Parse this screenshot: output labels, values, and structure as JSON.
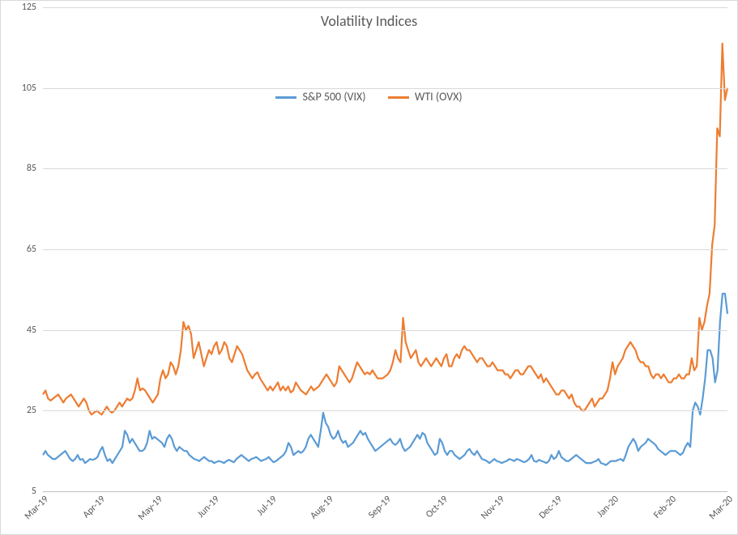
{
  "chart": {
    "type": "line",
    "title": "Volatility Indices",
    "title_fontsize": 18,
    "title_color": "#595959",
    "background_color": "#ffffff",
    "border_color": "#d9d9d9",
    "grid_color": "#d9d9d9",
    "axis_line_color": "#bfbfbf",
    "tick_label_color": "#595959",
    "tick_label_fontsize": 12,
    "legend_fontsize": 14,
    "line_width": 2.2,
    "ylim": [
      5,
      125
    ],
    "ytick_step": 20,
    "yticks": [
      5,
      25,
      45,
      65,
      85,
      105,
      125
    ],
    "x_categories": [
      "Mar-19",
      "Apr-19",
      "May-19",
      "Jun-19",
      "Jul-19",
      "Aug-19",
      "Sep-19",
      "Oct-19",
      "Nov-19",
      "Dec-19",
      "Jan-20",
      "Feb-20",
      "Mar-20"
    ],
    "series": [
      {
        "name": "S&P 500 (VIX)",
        "color": "#5b9bd5",
        "values": [
          14,
          15,
          14,
          13.5,
          13,
          13,
          13.5,
          14,
          14.5,
          15,
          14,
          13,
          12.5,
          13,
          14,
          12.8,
          13,
          12,
          12.5,
          13,
          12.8,
          13,
          13.5,
          15,
          16,
          14,
          12.5,
          13,
          12,
          13,
          14,
          15,
          16,
          20,
          19,
          17,
          18,
          17,
          16,
          15,
          15,
          15.5,
          17,
          20,
          18,
          18.5,
          18,
          17.5,
          17,
          16,
          18,
          19,
          18,
          16,
          15,
          16,
          15.5,
          15,
          15,
          14,
          13.5,
          13,
          12.8,
          12.5,
          13,
          13.5,
          13,
          12.5,
          12.5,
          12,
          12.3,
          12.5,
          12.3,
          12,
          12.5,
          12.8,
          12.5,
          12.2,
          13,
          13.5,
          14,
          13.5,
          13,
          12.5,
          13,
          13.2,
          13.5,
          13,
          12.5,
          12.8,
          13,
          13.5,
          12.8,
          12.2,
          12.5,
          13,
          13.5,
          14,
          15,
          17,
          16,
          14,
          14.5,
          15,
          14.5,
          15,
          16,
          18,
          19,
          18,
          17,
          16,
          20,
          24.5,
          22,
          21,
          19,
          18,
          18.5,
          20,
          18,
          17,
          17.5,
          16,
          16.5,
          17,
          18,
          19,
          20,
          19,
          19.5,
          18,
          17,
          16,
          15,
          15.5,
          16,
          16.5,
          17,
          17.5,
          18,
          17,
          16.5,
          17,
          18,
          16,
          15,
          15.5,
          16,
          17,
          18,
          19,
          18,
          19.5,
          19,
          17,
          16,
          15,
          14,
          14.5,
          18,
          17,
          15,
          14,
          15,
          15,
          14,
          13.5,
          13,
          13.5,
          14,
          15,
          15.5,
          14.5,
          14,
          15,
          14,
          13,
          12.8,
          12.5,
          12,
          12.5,
          13,
          12.5,
          12.3,
          12,
          12.3,
          12.5,
          13,
          12.8,
          12.5,
          13,
          12.8,
          12.5,
          12.2,
          12.5,
          13,
          14,
          12.5,
          12.3,
          12.8,
          12.5,
          12.3,
          12,
          12.5,
          14,
          13,
          13.5,
          15,
          13.5,
          13,
          12.5,
          12.5,
          13,
          13.5,
          14,
          13.5,
          13,
          12.5,
          12,
          12,
          12,
          12.3,
          12.5,
          13,
          12,
          11.8,
          11.5,
          12,
          12.5,
          12.5,
          12.5,
          12.8,
          13,
          12.5,
          14,
          16,
          17,
          18,
          17,
          15,
          16,
          16.5,
          17,
          18,
          17.5,
          17,
          16.5,
          15.5,
          15,
          14.5,
          14,
          14.5,
          15,
          15,
          15,
          14.5,
          14,
          14.5,
          16,
          17,
          16,
          25,
          27,
          26,
          24,
          28,
          33,
          40,
          40,
          38,
          32,
          35,
          47,
          54,
          54,
          49
        ]
      },
      {
        "name": "WTI (OVX)",
        "color": "#ed7d31",
        "values": [
          29,
          30,
          28,
          27.5,
          28,
          28.5,
          29,
          28,
          27,
          28,
          28.5,
          29,
          28,
          27,
          26,
          27,
          28,
          27,
          25,
          24,
          24.5,
          25,
          24.5,
          24,
          25,
          26,
          25,
          24.5,
          25,
          26,
          27,
          26,
          27,
          28,
          27.5,
          28,
          30,
          33,
          30,
          30.5,
          30,
          29,
          28,
          27,
          28,
          29,
          33,
          35,
          33,
          34,
          37,
          36,
          34,
          36,
          40,
          47,
          45,
          46,
          44,
          38,
          40,
          42,
          39,
          36,
          38,
          40,
          39,
          41,
          42,
          39,
          40,
          42,
          41,
          38,
          37,
          39,
          41,
          40,
          39,
          37,
          35,
          34,
          33,
          34,
          34.5,
          33,
          32,
          31,
          30,
          31,
          30,
          31,
          32,
          30,
          31,
          30,
          31,
          29.5,
          30,
          32,
          31,
          30,
          29.5,
          29,
          30,
          31,
          30,
          30.5,
          31,
          32,
          33,
          34,
          33,
          32,
          31,
          32,
          36,
          35,
          34,
          33,
          32,
          33,
          35,
          37,
          36,
          35,
          34,
          34.5,
          34,
          35,
          34,
          33,
          33,
          33,
          33.5,
          34,
          35,
          37,
          40,
          38,
          37,
          48,
          42,
          40,
          38,
          39,
          40,
          37,
          36,
          37,
          38,
          37,
          36,
          37,
          38,
          37,
          36,
          38,
          39,
          36,
          36,
          38,
          39,
          38,
          40,
          41,
          40,
          40,
          39,
          38,
          37,
          38,
          38,
          37,
          36,
          36,
          37,
          36,
          35,
          35,
          35,
          34,
          34,
          33,
          34,
          35,
          35,
          34,
          34,
          35,
          36,
          36,
          35,
          34,
          33,
          34,
          32,
          33,
          32,
          31,
          30,
          29,
          29,
          30,
          30,
          29,
          28,
          29,
          27,
          26,
          26,
          25,
          25,
          26,
          27,
          28,
          26,
          27,
          28,
          28,
          29,
          30,
          33,
          37,
          34,
          36,
          37,
          38,
          40,
          41,
          42,
          41,
          40,
          38,
          37,
          37,
          36,
          36,
          34,
          33,
          34,
          34,
          33,
          34,
          33,
          32,
          32,
          33,
          33,
          34,
          33,
          33,
          34,
          34,
          38,
          35,
          36,
          48,
          45,
          47,
          51,
          54,
          66,
          71,
          95,
          93,
          116,
          102,
          105
        ]
      }
    ]
  }
}
